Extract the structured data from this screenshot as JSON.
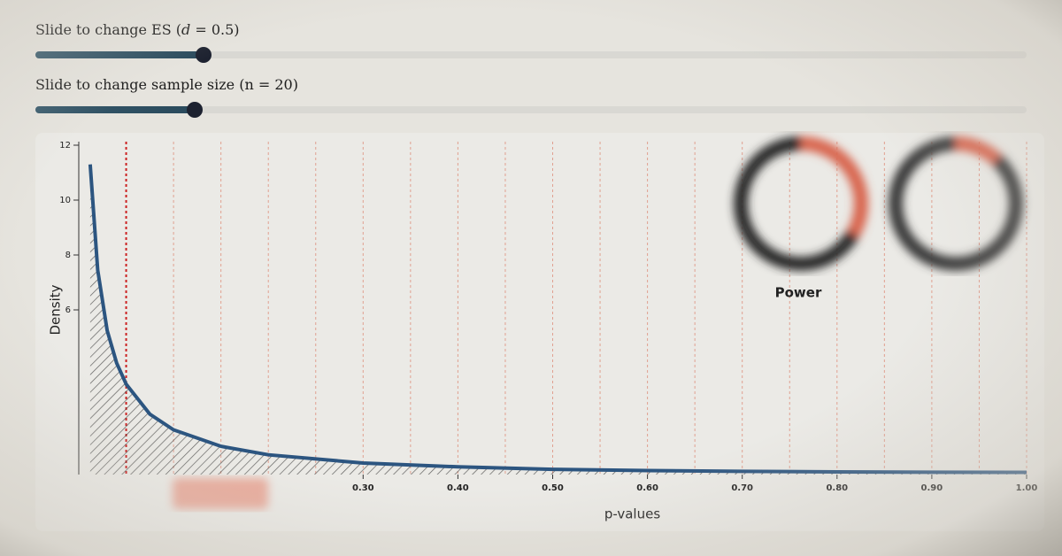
{
  "controls": {
    "es_slider": {
      "label_prefix": "Slide to change ES (",
      "label_symbol": "d",
      "label_suffix": " = 0.5)"
    },
    "n_slider": {
      "label_prefix": "Slide to change sample size (",
      "label_symbol": "n",
      "label_suffix": " = 20)"
    }
  },
  "power_label": "Power",
  "chart_data": {
    "type": "line",
    "x_label": "p-values",
    "y_label": "Density",
    "x": [
      0.012,
      0.02,
      0.03,
      0.04,
      0.05,
      0.075,
      0.1,
      0.15,
      0.2,
      0.3,
      0.4,
      0.5,
      0.6,
      0.7,
      0.8,
      0.9,
      1.0
    ],
    "values": [
      11.3,
      7.45,
      5.25,
      4.06,
      3.29,
      2.2,
      1.63,
      1.03,
      0.72,
      0.42,
      0.28,
      0.19,
      0.145,
      0.115,
      0.096,
      0.085,
      0.082
    ],
    "color": "#2c5580",
    "xlim": [
      0,
      1
    ],
    "ylim": [
      0,
      12
    ],
    "xticks": [
      {
        "value": 0.3,
        "label": "0.30"
      },
      {
        "value": 0.4,
        "label": "0.40"
      },
      {
        "value": 0.5,
        "label": "0.50"
      },
      {
        "value": 0.6,
        "label": "0.60"
      },
      {
        "value": 0.7,
        "label": "0.70"
      },
      {
        "value": 0.8,
        "label": "0.80"
      },
      {
        "value": 0.9,
        "label": "0.90"
      },
      {
        "value": 1,
        "label": "1.00"
      }
    ],
    "yticks": [
      6,
      8,
      10,
      12
    ],
    "grid_x": [
      0.1,
      0.15,
      0.2,
      0.25,
      0.3,
      0.35,
      0.4,
      0.45,
      0.5,
      0.55,
      0.6,
      0.65,
      0.7,
      0.75,
      0.8,
      0.85,
      0.9,
      0.95,
      1
    ],
    "alpha": 0.05
  }
}
